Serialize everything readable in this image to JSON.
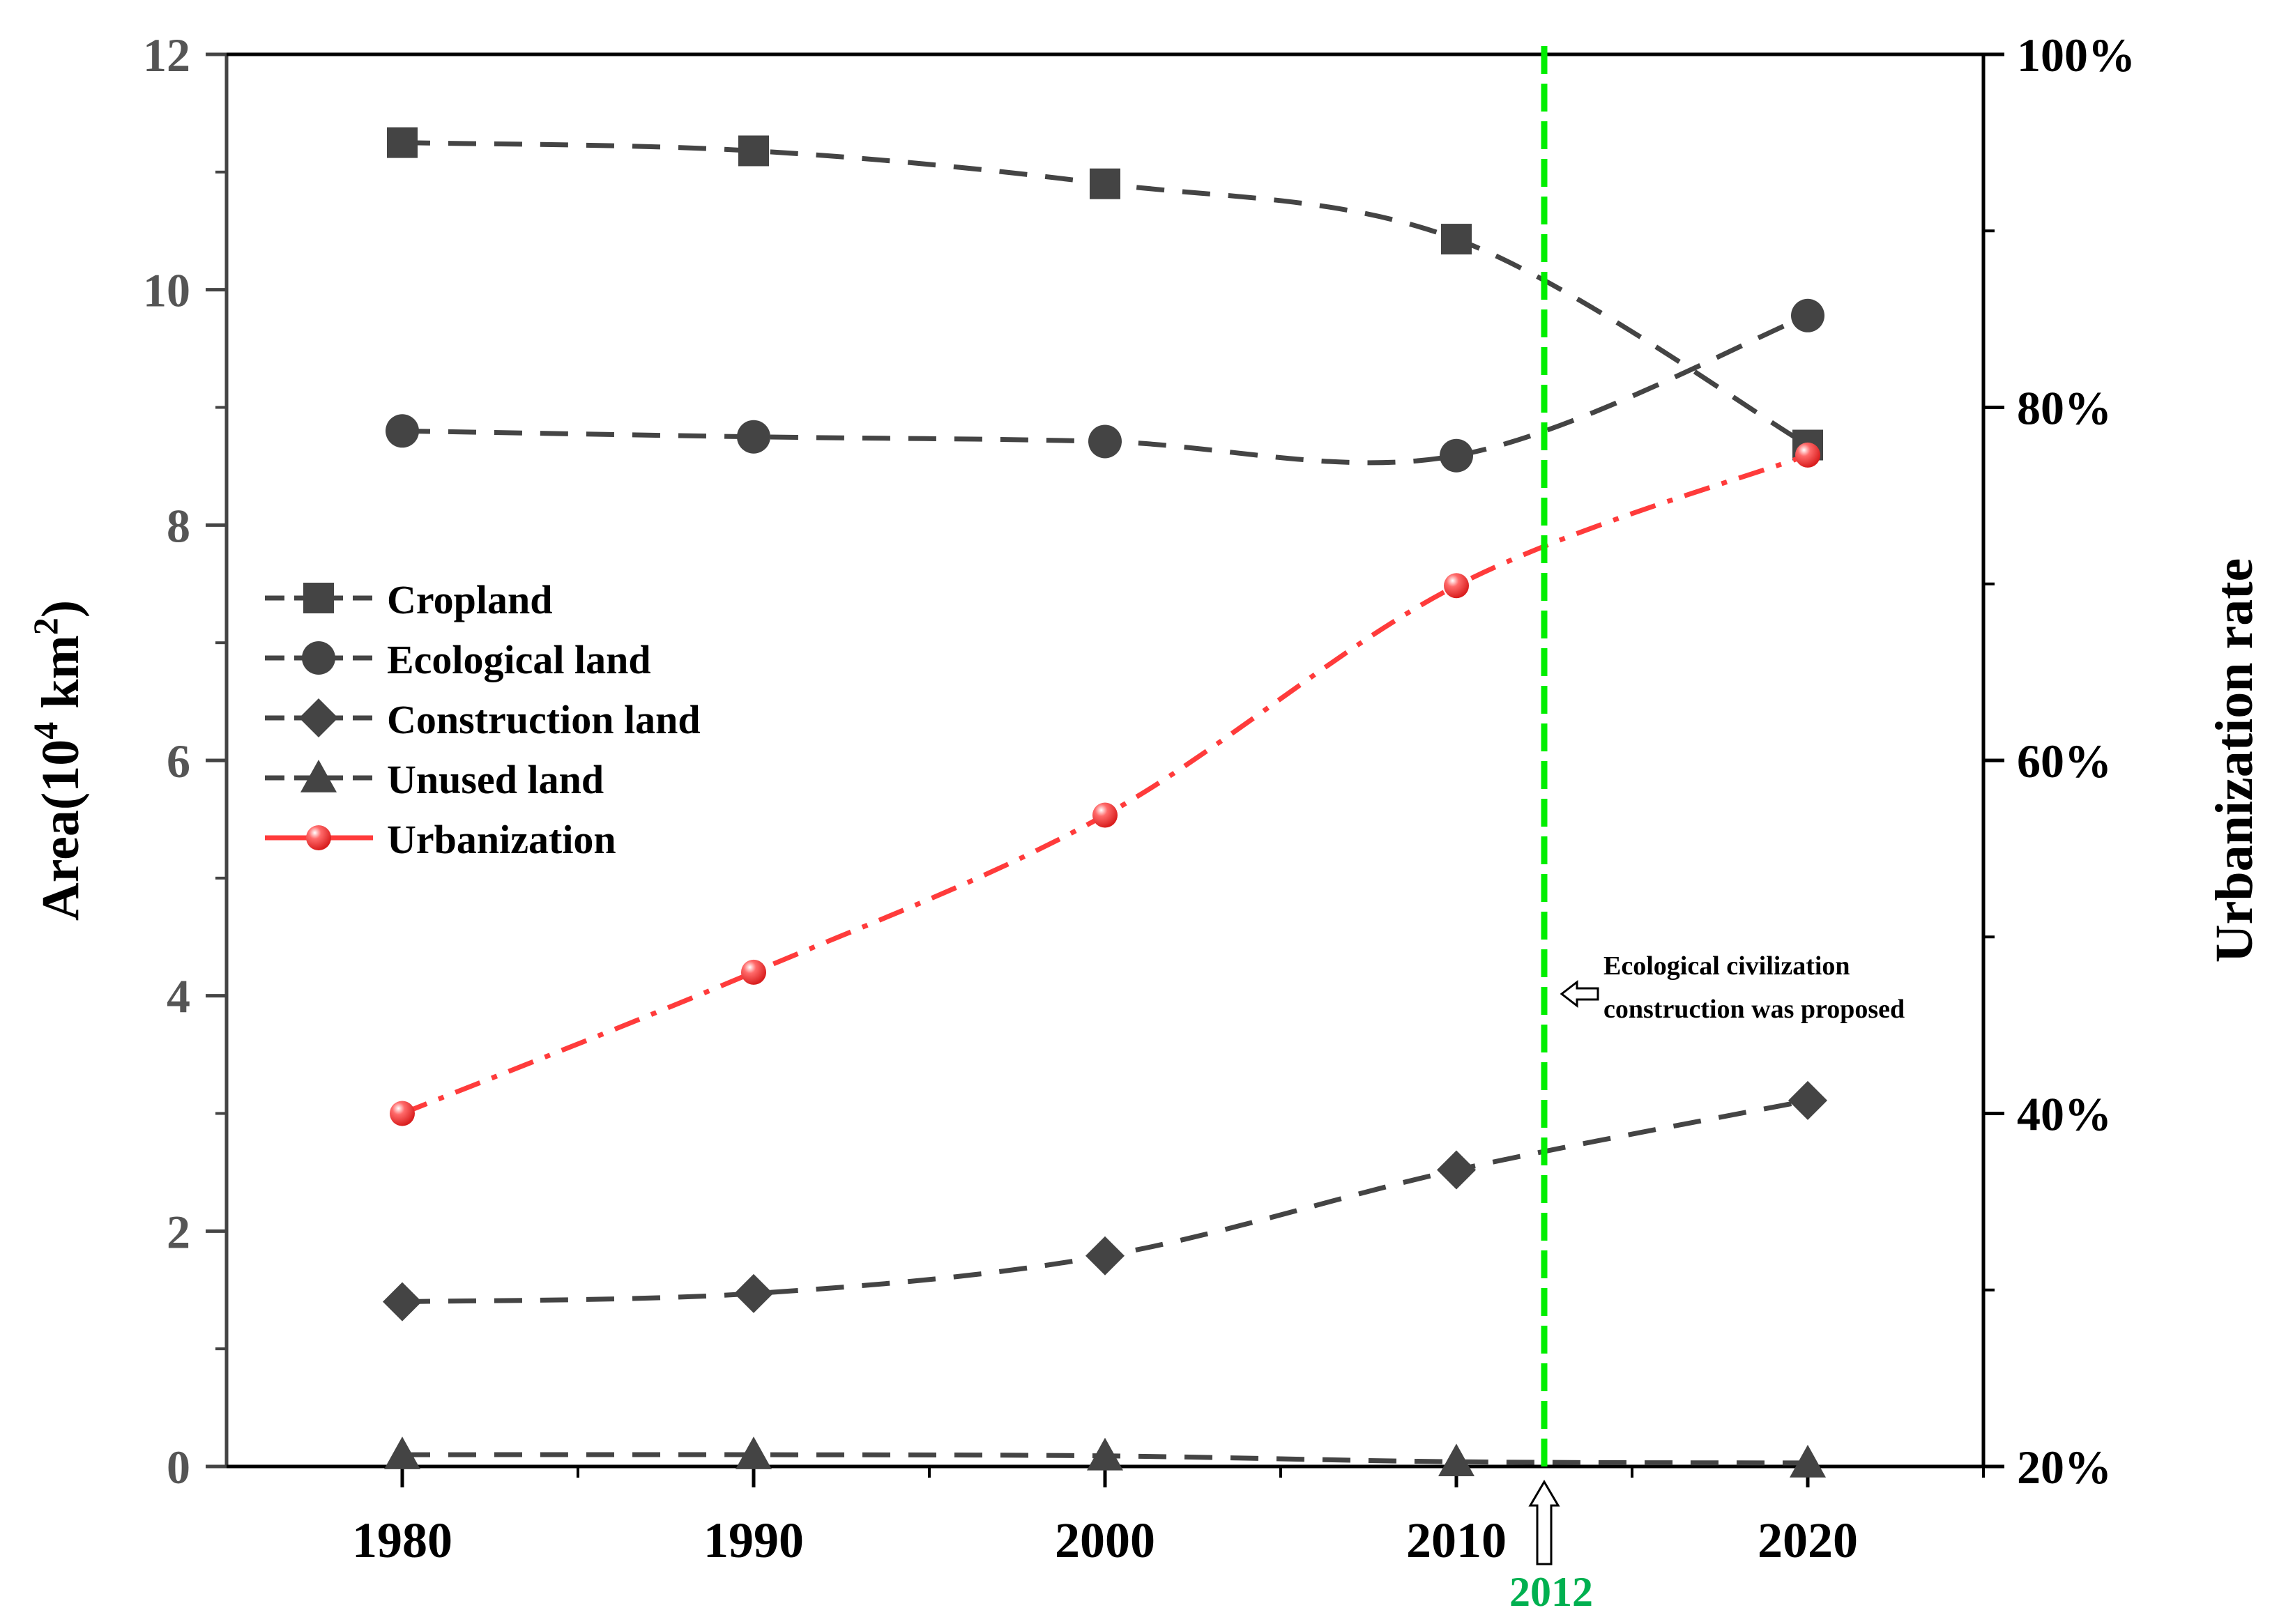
{
  "chart_data": {
    "type": "line",
    "x": [
      1980,
      1990,
      2000,
      2010,
      2020
    ],
    "xlim": [
      1975,
      2025
    ],
    "x_ticks": [
      "1980",
      "1990",
      "2000",
      "2010",
      "2020"
    ],
    "ylabel_left": "Area(10",
    "ylabel_left_sup1": "4",
    "ylabel_left_mid": " km",
    "ylabel_left_sup2": "2",
    "ylabel_left_end": ")",
    "ylim_left": [
      0,
      12
    ],
    "y_ticks_left": [
      0,
      2,
      4,
      6,
      8,
      10,
      12
    ],
    "ylabel_right": "Urbanization rate",
    "ylim_right": [
      20,
      100
    ],
    "y_ticks_right": [
      "20%",
      "40%",
      "60%",
      "80%",
      "100%"
    ],
    "y_ticks_right_values": [
      20,
      40,
      60,
      80,
      100
    ],
    "series": [
      {
        "name": "Cropland",
        "axis": "left",
        "marker": "square",
        "color": "#444444",
        "values": [
          11.25,
          11.18,
          10.9,
          10.43,
          8.68
        ]
      },
      {
        "name": "Ecological land",
        "axis": "left",
        "marker": "circle",
        "color": "#444444",
        "values": [
          8.8,
          8.75,
          8.71,
          8.59,
          9.78
        ]
      },
      {
        "name": "Construction land",
        "axis": "left",
        "marker": "diamond",
        "color": "#444444",
        "values": [
          1.4,
          1.47,
          1.79,
          2.52,
          3.11
        ]
      },
      {
        "name": "Unused land",
        "axis": "left",
        "marker": "triangle",
        "color": "#444444",
        "values": [
          0.1,
          0.1,
          0.09,
          0.04,
          0.03
        ]
      },
      {
        "name": "Urbanization",
        "axis": "right",
        "marker": "circle",
        "color": "#ff3b3b",
        "values": [
          40.0,
          48.0,
          56.9,
          69.9,
          77.3
        ]
      }
    ],
    "reference_line": {
      "x": 2012.5,
      "label": "2012",
      "color": "#00ee00",
      "label_color": "#00b050"
    },
    "annotation": {
      "line1": "Ecological civilization",
      "line2": "construction was proposed"
    },
    "legend_position": "left-middle"
  }
}
